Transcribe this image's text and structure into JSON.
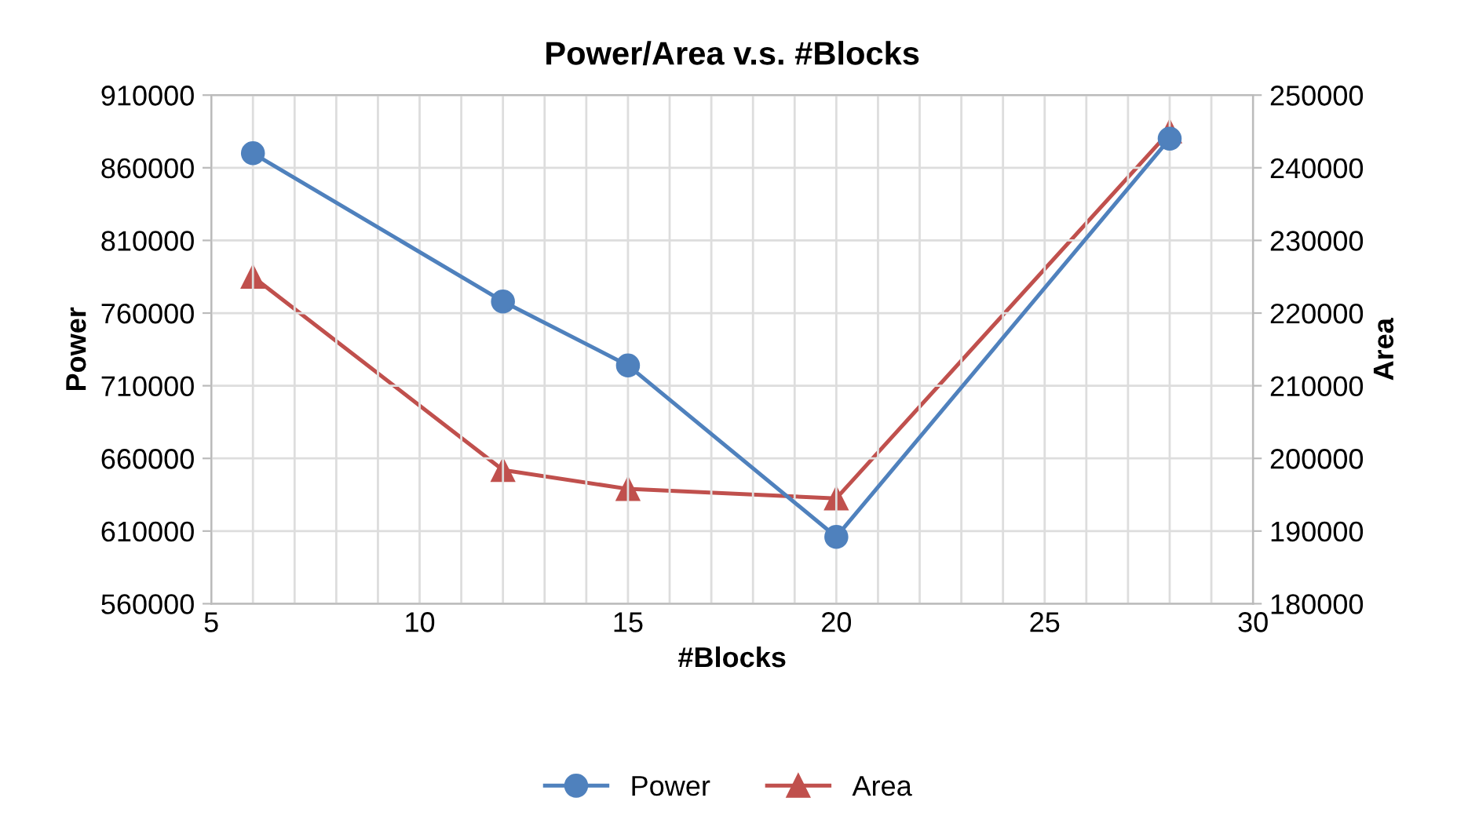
{
  "chart_data": {
    "type": "line",
    "title": "Power/Area v.s. #Blocks",
    "xlabel": "#Blocks",
    "ylabel": "Power",
    "y2label": "Area",
    "x": [
      6,
      12,
      15,
      20,
      28
    ],
    "series": [
      {
        "name": "Power",
        "color": "#4f81bd",
        "values": [
          870000,
          768000,
          724000,
          606000,
          880000
        ],
        "marker": "circle"
      },
      {
        "name": "Area",
        "color": "#c0504d",
        "values": [
          225000,
          198400,
          195800,
          194500,
          245000
        ],
        "marker": "triangle",
        "axis": "y2"
      }
    ],
    "xlim": [
      5,
      30
    ],
    "xticks": [
      5,
      {
        "value": 6,
        "label": null
      },
      {
        "value": 7,
        "label": null
      },
      {
        "value": 8,
        "label": null
      },
      {
        "value": 9,
        "label": null
      },
      10,
      {
        "value": 11,
        "label": null
      },
      {
        "value": 12,
        "label": null
      },
      {
        "value": 13,
        "label": null
      },
      {
        "value": 14,
        "label": null
      },
      15,
      {
        "value": 16,
        "label": null
      },
      {
        "value": 17,
        "label": null
      },
      {
        "value": 18,
        "label": null
      },
      {
        "value": 19,
        "label": null
      },
      20,
      {
        "value": 21,
        "label": null
      },
      {
        "value": 22,
        "label": null
      },
      {
        "value": 23,
        "label": null
      },
      {
        "value": 24,
        "label": null
      },
      25,
      {
        "value": 26,
        "label": null
      },
      {
        "value": 27,
        "label": null
      },
      {
        "value": 28,
        "label": null
      },
      {
        "value": 29,
        "label": null
      },
      30
    ],
    "ylim": [
      560000,
      910000
    ],
    "yticks": [
      560000,
      610000,
      660000,
      710000,
      760000,
      810000,
      860000,
      910000
    ],
    "y2lim": [
      180000,
      250000
    ],
    "y2ticks": [
      180000,
      190000,
      200000,
      210000,
      220000,
      230000,
      240000,
      250000
    ],
    "grid": true,
    "legend": "bottom",
    "line_style": "solid"
  }
}
